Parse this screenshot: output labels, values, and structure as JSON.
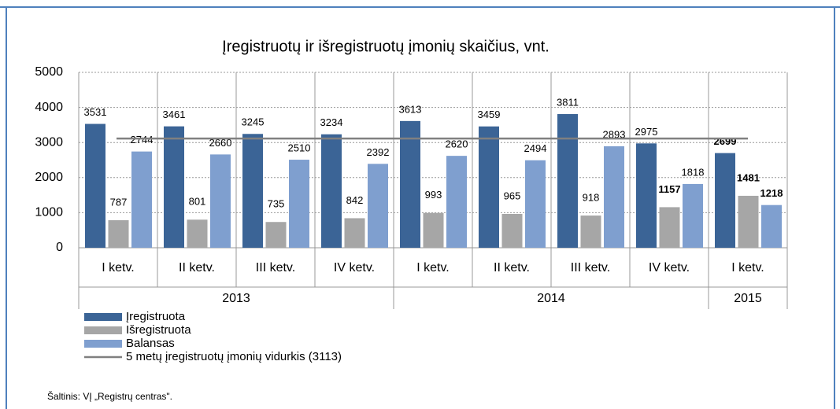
{
  "chart_data": {
    "type": "bar",
    "title": "Įregistruotų ir išregistruotų įmonių skaičius, vnt.",
    "categories": [
      "I ketv.",
      "II ketv.",
      "III ketv.",
      "IV ketv.",
      "I ketv.",
      "II ketv.",
      "III ketv.",
      "IV ketv.",
      "I ketv."
    ],
    "groups": [
      {
        "label": "2013",
        "count": 4
      },
      {
        "label": "2014",
        "count": 4
      },
      {
        "label": "2015",
        "count": 1
      }
    ],
    "series": [
      {
        "name": "Įregistruota",
        "color": "#3b6496",
        "values": [
          3531,
          3461,
          3245,
          3234,
          3613,
          3459,
          3811,
          2975,
          2699
        ]
      },
      {
        "name": "Išregistruota",
        "color": "#a6a6a6",
        "values": [
          787,
          801,
          735,
          842,
          993,
          965,
          918,
          1157,
          1481
        ]
      },
      {
        "name": "Balansas",
        "color": "#7f9fcf",
        "values": [
          2744,
          2660,
          2510,
          2392,
          2620,
          2494,
          2893,
          1818,
          1218
        ]
      }
    ],
    "reference_line": {
      "name": "5 metų įregistruotų įmonių vidurkis (3113)",
      "value": 3113,
      "color": "#808080"
    },
    "ylim": [
      0,
      5000
    ],
    "yticks": [
      0,
      1000,
      2000,
      3000,
      4000,
      5000
    ],
    "grid": true,
    "source": "Šaltinis: VĮ „Registrų centras\"."
  }
}
